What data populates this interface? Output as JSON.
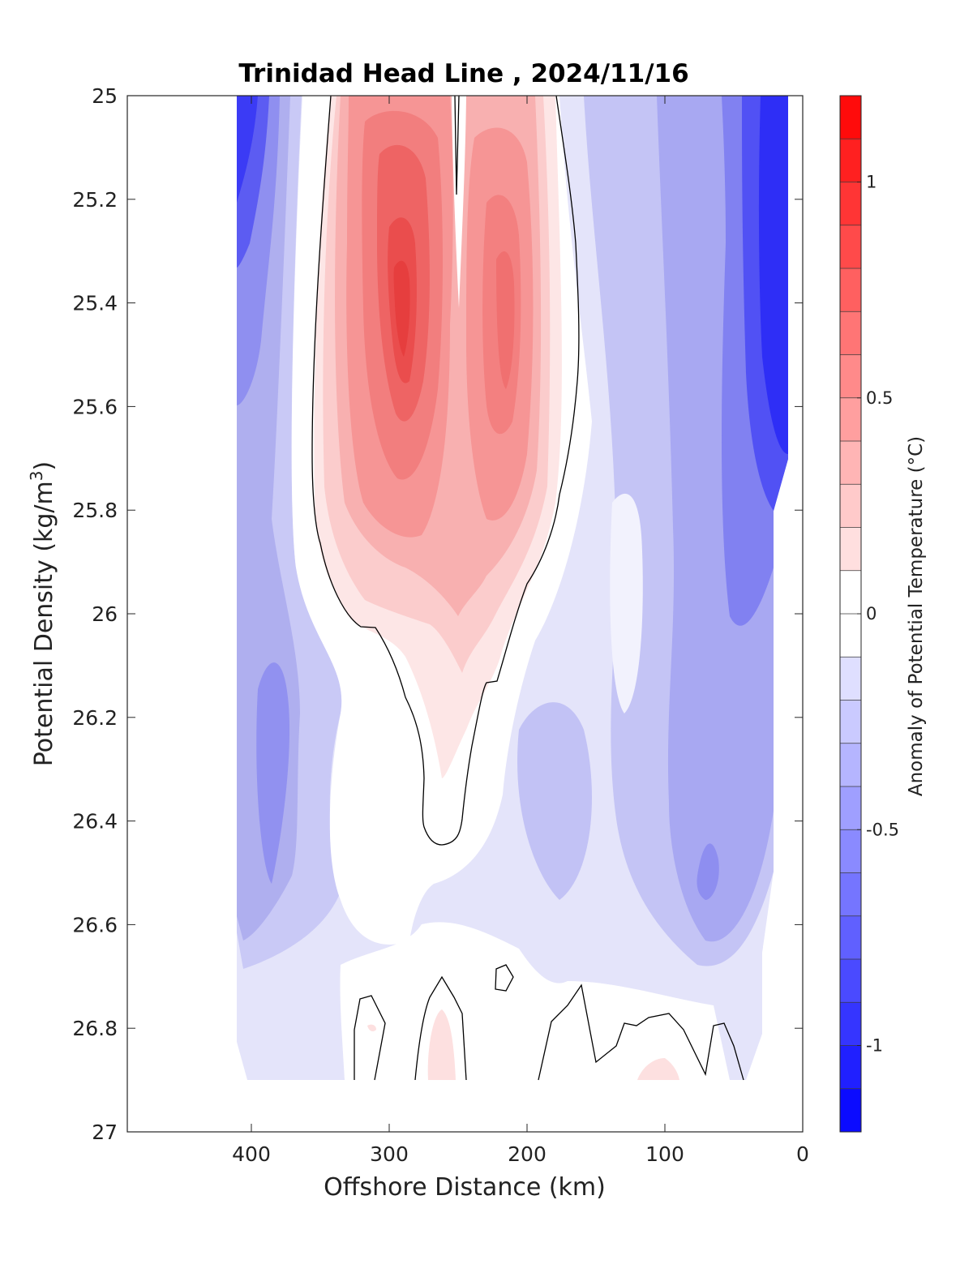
{
  "chart_data": {
    "type": "contour",
    "title": "Trinidad Head Line , 2024/11/16",
    "xlabel": "Offshore Distance (km)",
    "ylabel": "Potential Density (kg/m",
    "ylabel_sup": "3",
    "ylabel_close": ")",
    "x_axis": {
      "range": [
        490,
        0
      ],
      "reversed": true,
      "ticks": [
        400,
        300,
        200,
        100,
        0
      ],
      "tick_labels": [
        "400",
        "300",
        "200",
        "100",
        "0"
      ]
    },
    "y_axis": {
      "range": [
        25,
        27
      ],
      "reversed": true,
      "ticks": [
        25,
        25.2,
        25.4,
        25.6,
        25.8,
        26,
        26.2,
        26.4,
        26.6,
        26.8,
        27
      ],
      "tick_labels": [
        "25",
        "25.2",
        "25.4",
        "25.6",
        "25.8",
        "26",
        "26.2",
        "26.4",
        "26.6",
        "26.8",
        "27"
      ]
    },
    "colorbar": {
      "label": "Anomaly of Potential Temperature (°C)",
      "range": [
        -1.2,
        1.2
      ],
      "ticks": [
        1,
        0.5,
        0,
        -0.5,
        -1
      ],
      "tick_labels": [
        "1",
        "0.5",
        "0",
        "-0.5",
        "-1"
      ],
      "levels": [
        -1.2,
        -1.1,
        -1.0,
        -0.9,
        -0.8,
        -0.7,
        -0.6,
        -0.5,
        -0.4,
        -0.3,
        -0.2,
        -0.1,
        0,
        0.1,
        0.2,
        0.3,
        0.4,
        0.5,
        0.6,
        0.7,
        0.8,
        0.9,
        1.0,
        1.1,
        1.2
      ],
      "colormap": "blue-white-red"
    },
    "data_extent": {
      "x": [
        412,
        10
      ],
      "y": [
        25,
        26.9
      ]
    },
    "zero_contour_color": "#000000",
    "field_regions": [
      {
        "label": "warm core",
        "x": [
          340,
          180
        ],
        "y": [
          25.0,
          26.3
        ],
        "peak_anomaly": 0.85,
        "peak_at": [
          285,
          25.45
        ]
      },
      {
        "label": "secondary warm maximum",
        "peak_anomaly": 0.6,
        "peak_at": [
          215,
          25.45
        ]
      },
      {
        "label": "offshore cold band",
        "x": [
          412,
          350
        ],
        "y": [
          25.0,
          25.4
        ],
        "min_anomaly": -1.0
      },
      {
        "label": "nearshore cold band",
        "x": [
          40,
          10
        ],
        "y": [
          25.0,
          25.8
        ],
        "min_anomaly": -1.05
      },
      {
        "label": "deep near-zero layer",
        "y": [
          26.7,
          26.9
        ],
        "anomaly_range": [
          -0.2,
          0.15
        ]
      }
    ]
  }
}
